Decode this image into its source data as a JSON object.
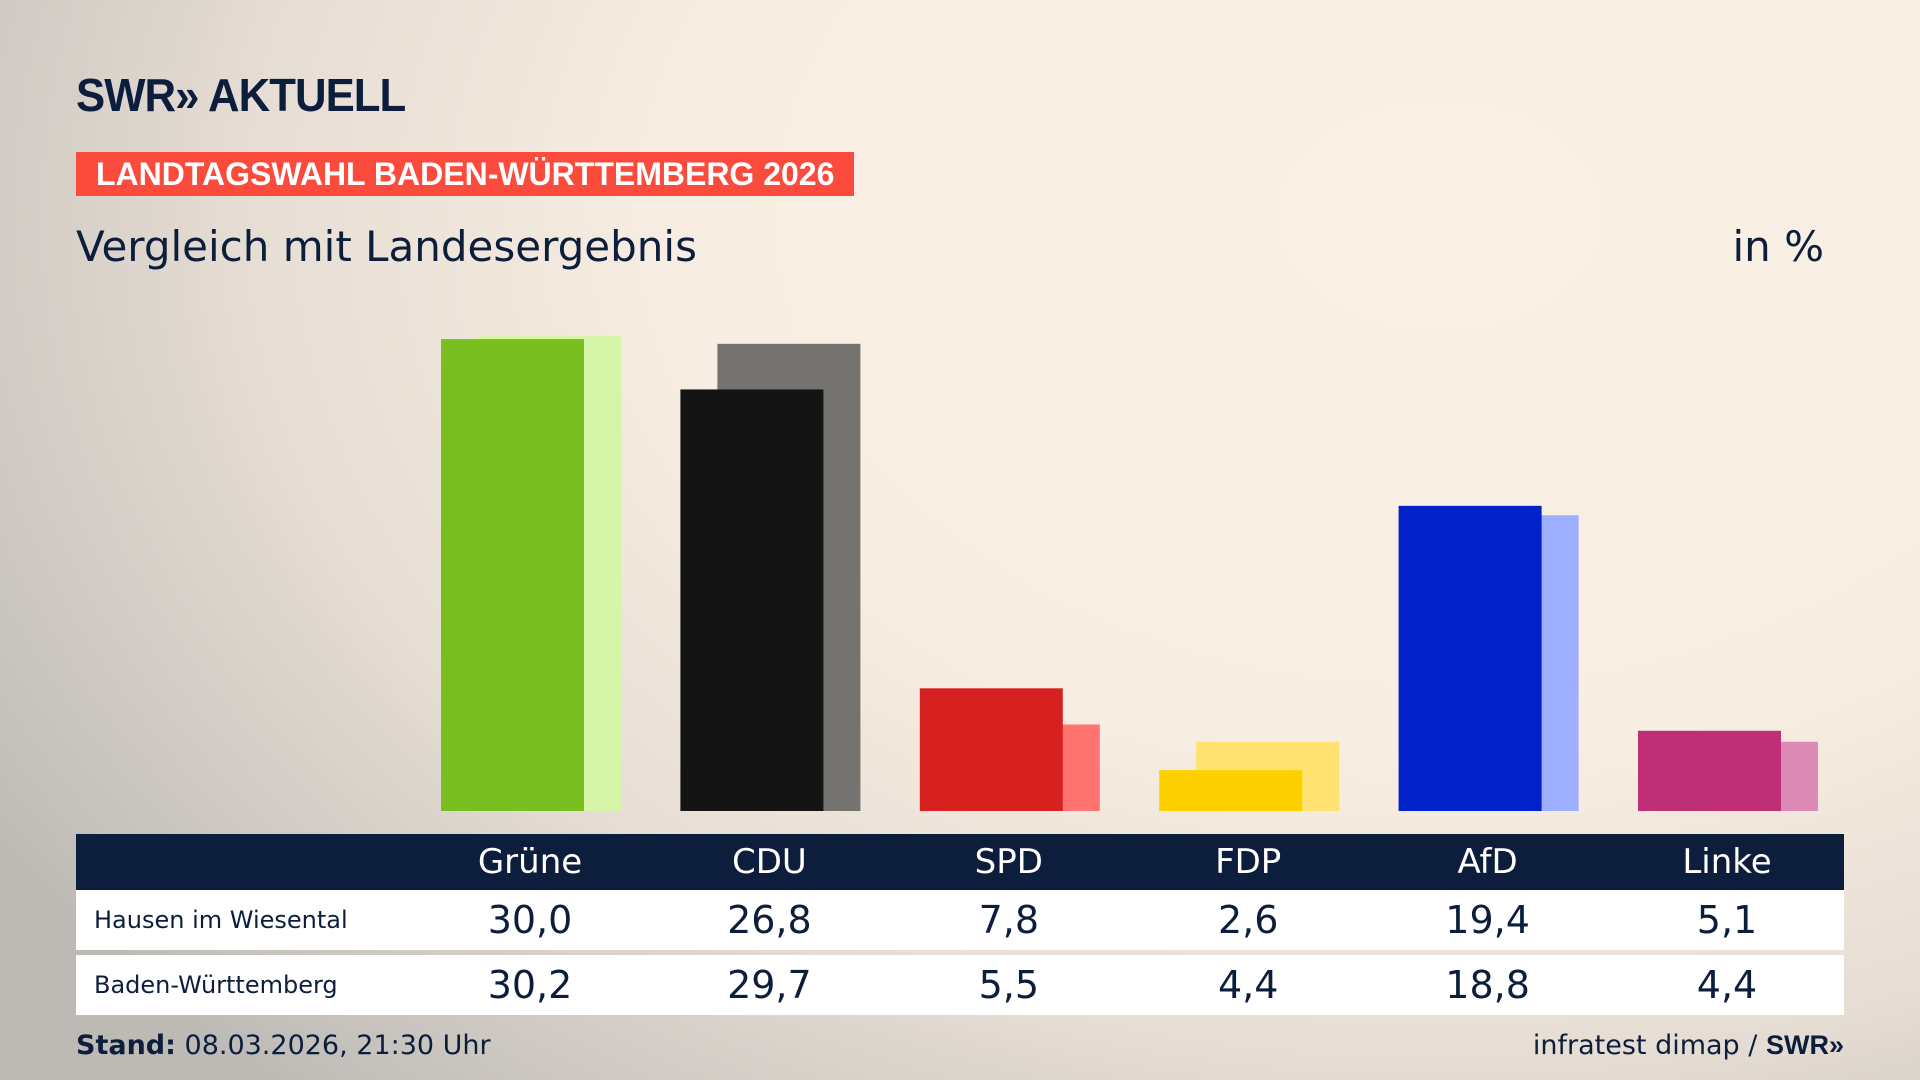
{
  "logo": "SWR» AKTUELL",
  "banner": "LANDTAGSWAHL BADEN-WÜRTTEMBERG 2026",
  "subtitle": "Vergleich mit Landesergebnis",
  "unit": "in %",
  "chart_data": {
    "type": "bar",
    "categories": [
      "Grüne",
      "CDU",
      "SPD",
      "FDP",
      "AfD",
      "Linke"
    ],
    "series": [
      {
        "name": "Hausen im Wiesental",
        "values": [
          30.0,
          26.8,
          7.8,
          2.6,
          19.4,
          5.1
        ],
        "labels": [
          "30,0",
          "26,8",
          "7,8",
          "2,6",
          "19,4",
          "5,1"
        ],
        "colors": [
          "#78be1e",
          "#141414",
          "#d72020",
          "#ffd000",
          "#0022c8",
          "#be2f75"
        ]
      },
      {
        "name": "Baden-Württemberg",
        "values": [
          30.2,
          29.7,
          5.5,
          4.4,
          18.8,
          4.4
        ],
        "labels": [
          "30,2",
          "29,7",
          "5,5",
          "4,4",
          "18,8",
          "4,4"
        ],
        "colors": [
          "#d6f5a9",
          "#757370",
          "#ff7470",
          "#ffe270",
          "#9eaeff",
          "#dd8ab7"
        ]
      }
    ],
    "ylim": [
      0,
      30.2
    ]
  },
  "footer": {
    "stand_label": "Stand:",
    "stand_value": "08.03.2026, 21:30 Uhr",
    "source": "infratest dimap /",
    "source_logo": "SWR»"
  }
}
